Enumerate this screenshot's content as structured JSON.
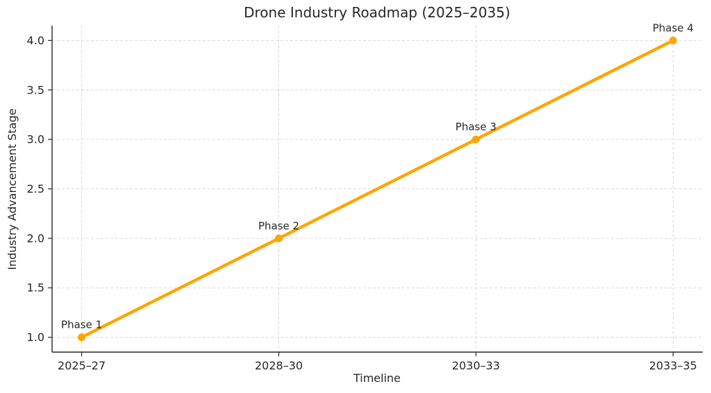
{
  "chart_data": {
    "type": "line",
    "title": "Drone Industry Roadmap (2025–2035)",
    "xlabel": "Timeline",
    "ylabel": "Industry Advancement Stage",
    "categories": [
      "2025–27",
      "2028–30",
      "2030–33",
      "2033–35"
    ],
    "series": [
      {
        "name": "Industry Advancement Stage",
        "values": [
          1,
          2,
          3,
          4
        ],
        "point_labels": [
          "Phase 1",
          "Phase 2",
          "Phase 3",
          "Phase 4"
        ],
        "color": "#FFA500"
      }
    ],
    "yticks": [
      1.0,
      1.5,
      2.0,
      2.5,
      3.0,
      3.5,
      4.0
    ],
    "ytick_labels": [
      "1.0",
      "1.5",
      "2.0",
      "2.5",
      "3.0",
      "3.5",
      "4.0"
    ],
    "xlim": [
      -0.15,
      3.15
    ],
    "ylim": [
      0.85,
      4.15
    ],
    "grid": true,
    "legend": "none",
    "colors": {
      "line": "#FFA500",
      "grid": "#d9d9d9",
      "axis": "#262626",
      "text": "#262626",
      "background": "#ffffff"
    }
  }
}
